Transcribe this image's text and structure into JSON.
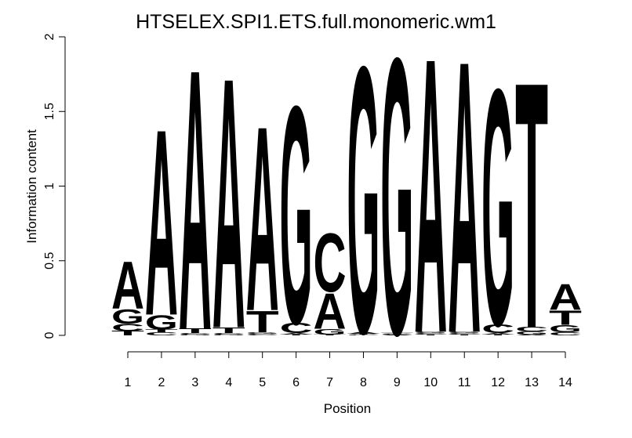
{
  "chart_data": {
    "type": "logo",
    "title": "HTSELEX.SPI1.ETS.full.monomeric.wm1",
    "x_label": "Position",
    "y_label": "Information content",
    "categories": [
      "1",
      "2",
      "3",
      "4",
      "5",
      "6",
      "7",
      "8",
      "9",
      "10",
      "11",
      "12",
      "13",
      "14"
    ],
    "ylim": [
      0,
      2
    ],
    "yticks": [
      0,
      0.5,
      1,
      1.5,
      2
    ],
    "series": [
      {
        "name": "A",
        "color": "#22ee22",
        "values": [
          0.33,
          1.3,
          1.82,
          1.75,
          1.29,
          0.01,
          0.25,
          0.015,
          0.005,
          1.92,
          1.9,
          0.01,
          0.005,
          0.18
        ]
      },
      {
        "name": "C",
        "color": "#0000ee",
        "values": [
          0.05,
          0.02,
          0.01,
          0.01,
          0.01,
          0.07,
          0.41,
          0.005,
          0.005,
          0.01,
          0.01,
          0.06,
          0.03,
          0.02
        ]
      },
      {
        "name": "G",
        "color": "#ffa500",
        "values": [
          0.1,
          0.1,
          0.005,
          0.005,
          0.01,
          1.52,
          0.04,
          1.86,
          1.93,
          0.01,
          0.01,
          1.65,
          0.02,
          0.05
        ]
      },
      {
        "name": "T",
        "color": "#ff0000",
        "values": [
          0.03,
          0.02,
          0.03,
          0.04,
          0.15,
          0.005,
          0.005,
          0.005,
          0.005,
          0.005,
          0.005,
          0.005,
          1.72,
          0.1
        ]
      }
    ]
  }
}
